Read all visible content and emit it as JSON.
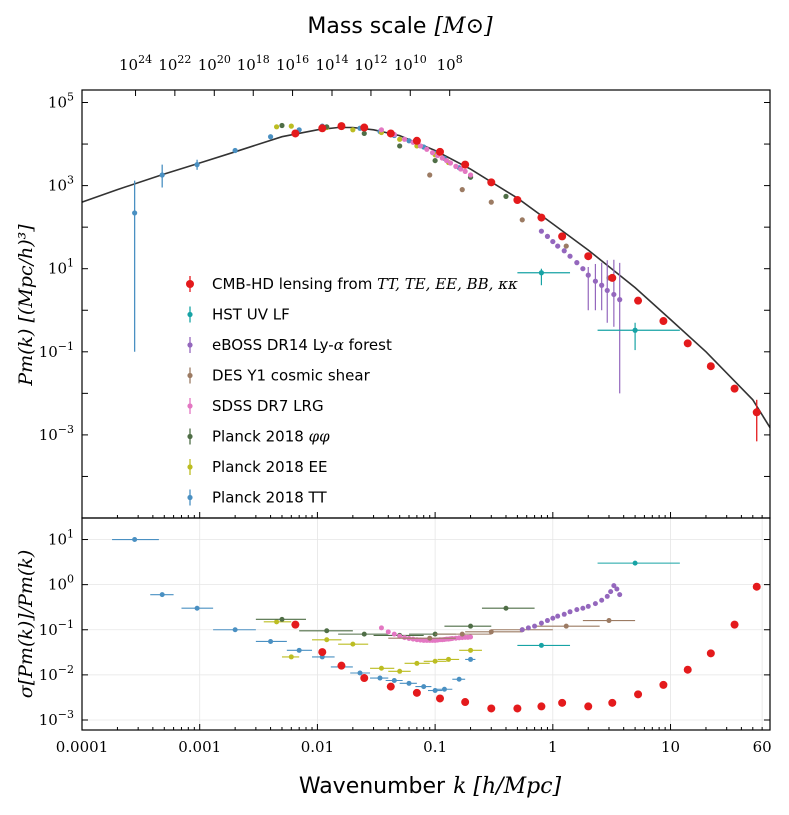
{
  "chart_data": [
    {
      "type": "scatter",
      "panel": "main",
      "title": "",
      "top_axis_label": "Mass scale [M⊙]",
      "top_ticks": [
        {
          "k": 0.000285,
          "base": "10",
          "exp": "24"
        },
        {
          "k": 0.000615,
          "base": "10",
          "exp": "22"
        },
        {
          "k": 0.00133,
          "base": "10",
          "exp": "20"
        },
        {
          "k": 0.00285,
          "base": "10",
          "exp": "18"
        },
        {
          "k": 0.00615,
          "base": "10",
          "exp": "16"
        },
        {
          "k": 0.0133,
          "base": "10",
          "exp": "14"
        },
        {
          "k": 0.0285,
          "base": "10",
          "exp": "12"
        },
        {
          "k": 0.0615,
          "base": "10",
          "exp": "10"
        },
        {
          "k": 0.133,
          "base": "10",
          "exp": "8"
        }
      ],
      "ylabel": "Pm(k) [(Mpc/h)³]",
      "yscale": "log",
      "ylim": [
        1e-05,
        200000.0
      ],
      "y_ticks": [
        {
          "v": 100000,
          "base": "10",
          "exp": "5"
        },
        {
          "v": 1000,
          "base": "10",
          "exp": "3"
        },
        {
          "v": 10,
          "base": "10",
          "exp": "1"
        },
        {
          "v": 0.1,
          "base": "10",
          "exp": "−1"
        },
        {
          "v": 0.001,
          "base": "10",
          "exp": "−3"
        }
      ],
      "legend_position": "lower-left",
      "series": [
        {
          "name": "CMB-HD lensing from TT,TE,EE,BB,κκ",
          "color": "#e41a1c",
          "k": [
            0.0065,
            0.011,
            0.016,
            0.025,
            0.042,
            0.07,
            0.11,
            0.18,
            0.3,
            0.5,
            0.8,
            1.2,
            2,
            3.2,
            5.3,
            8.7,
            14,
            22,
            35,
            54
          ],
          "P": [
            18000,
            24000,
            27000,
            25000,
            18000,
            12000,
            6500,
            3200,
            1200,
            450,
            170,
            60,
            20,
            6,
            1.7,
            0.55,
            0.16,
            0.045,
            0.013,
            0.0035
          ],
          "err_lo": [
            0,
            0,
            0,
            0,
            0,
            0,
            0,
            0,
            0,
            0,
            0,
            0,
            0,
            0,
            0,
            0,
            0,
            0,
            0,
            0.0028
          ],
          "err_hi": [
            0,
            0,
            0,
            0,
            0,
            0,
            0,
            0,
            0,
            0,
            0,
            0,
            0,
            0,
            0,
            0,
            0,
            0,
            0,
            0.0035
          ]
        },
        {
          "name": "HST UV LF",
          "color": "#17a3a5",
          "k": [
            0.8,
            5
          ],
          "P": [
            8,
            0.33
          ],
          "xerr": [
            [
              0.5,
              1.4
            ],
            [
              2.4,
              12
            ]
          ],
          "yerr": [
            [
              4,
              2
            ],
            [
              0.22,
              0.17
            ]
          ]
        },
        {
          "name": "eBOSS DR14 Ly-α forest",
          "color": "#9467bd",
          "k": [
            0.8,
            0.9,
            1.0,
            1.1,
            1.25,
            1.4,
            1.6,
            1.8,
            2.0,
            2.3,
            2.6,
            2.9,
            3.3,
            3.7
          ],
          "P": [
            80,
            60,
            45,
            35,
            27,
            20,
            14,
            10,
            7,
            5,
            4,
            3,
            2.4,
            1.8
          ],
          "yerr": [
            [
              0,
              0
            ],
            [
              0,
              0
            ],
            [
              0,
              0
            ],
            [
              0,
              0
            ],
            [
              0,
              0
            ],
            [
              0,
              0
            ],
            [
              0,
              0
            ],
            [
              0,
              0
            ],
            [
              6,
              4
            ],
            [
              4,
              8
            ],
            [
              3,
              10
            ],
            [
              2.5,
              13
            ],
            [
              2,
              14
            ],
            [
              1.79,
              12
            ]
          ]
        },
        {
          "name": "DES Y1 cosmic shear",
          "color": "#9c7b63",
          "k": [
            0.09,
            0.17,
            0.3,
            0.55,
            1.3,
            3
          ],
          "P": [
            1800,
            800,
            400,
            150,
            35,
            6
          ]
        },
        {
          "name": "SDSS DR7 LRG",
          "color": "#e377c2",
          "k": [
            0.035,
            0.045,
            0.055,
            0.065,
            0.075,
            0.085,
            0.095,
            0.105,
            0.115,
            0.125,
            0.135,
            0.15,
            0.165,
            0.18,
            0.2
          ],
          "P": [
            22000,
            17000,
            13000,
            11000,
            9000,
            7500,
            6200,
            5300,
            4600,
            4000,
            3500,
            2900,
            2500,
            2200,
            1800
          ]
        },
        {
          "name": "Planck 2018 φφ",
          "color": "#4f6e46",
          "k": [
            0.005,
            0.012,
            0.025,
            0.05,
            0.1,
            0.2,
            0.4
          ],
          "P": [
            28000,
            26000,
            18000,
            9000,
            4000,
            1600,
            550
          ]
        },
        {
          "name": "Planck 2018 EE",
          "color": "#bcbd22",
          "k": [
            0.0045,
            0.006,
            0.012,
            0.02,
            0.035,
            0.05,
            0.07,
            0.1,
            0.13
          ],
          "P": [
            26000,
            27000,
            25000,
            22000,
            19000,
            13000,
            9000,
            5500,
            3600
          ]
        },
        {
          "name": "Planck 2018 TT",
          "color": "#4a90c2",
          "k": [
            0.00028,
            0.00048,
            0.00095,
            0.002,
            0.004,
            0.007,
            0.011,
            0.016,
            0.023,
            0.034,
            0.045,
            0.06,
            0.08,
            0.1,
            0.12,
            0.16,
            0.2
          ],
          "P": [
            220,
            1800,
            3200,
            7000,
            15000,
            22000,
            27000,
            27000,
            24000,
            20000,
            16000,
            12000,
            8500,
            6000,
            4500,
            2700,
            1600
          ],
          "err_lo": [
            219.9,
            900,
            800,
            0,
            0,
            0,
            0,
            0,
            0,
            0,
            0,
            0,
            0,
            0,
            0,
            0,
            0
          ],
          "err_hi": [
            1100,
            1400,
            1000,
            0,
            0,
            0,
            0,
            0,
            0,
            0,
            0,
            0,
            0,
            0,
            0,
            0,
            0
          ]
        }
      ],
      "theory_curve": {
        "k": [
          0.0001,
          0.0002,
          0.0005,
          0.001,
          0.002,
          0.005,
          0.01,
          0.015,
          0.02,
          0.03,
          0.05,
          0.1,
          0.2,
          0.5,
          1,
          2,
          5,
          10,
          20,
          50,
          70
        ],
        "P": [
          400,
          800,
          1900,
          3500,
          6500,
          15000,
          22000,
          25000,
          25000,
          22000,
          16000,
          7000,
          2500,
          500,
          120,
          28,
          3.5,
          0.6,
          0.1,
          0.007,
          0.0015
        ]
      }
    },
    {
      "type": "scatter",
      "panel": "residual",
      "xlabel": "Wavenumber k [h/Mpc]",
      "ylabel": "σ[Pm(k)]/Pm(k)",
      "xscale": "log",
      "xlim": [
        0.0001,
        70
      ],
      "x_ticks": [
        {
          "v": 0.0001,
          "label": "0.0001"
        },
        {
          "v": 0.001,
          "label": "0.001"
        },
        {
          "v": 0.01,
          "label": "0.01"
        },
        {
          "v": 0.1,
          "label": "0.1"
        },
        {
          "v": 1,
          "label": "1"
        },
        {
          "v": 10,
          "label": "10"
        },
        {
          "v": 60,
          "label": "60"
        }
      ],
      "yscale": "log",
      "ylim": [
        0.0006,
        30
      ],
      "y_ticks": [
        {
          "v": 10,
          "base": "10",
          "exp": "1"
        },
        {
          "v": 1,
          "base": "10",
          "exp": "0"
        },
        {
          "v": 0.1,
          "base": "10",
          "exp": "−1"
        },
        {
          "v": 0.01,
          "base": "10",
          "exp": "−2"
        },
        {
          "v": 0.001,
          "base": "10",
          "exp": "−3"
        }
      ],
      "series": [
        {
          "name": "CMB-HD lensing",
          "color": "#e41a1c",
          "k": [
            0.0065,
            0.011,
            0.016,
            0.025,
            0.042,
            0.07,
            0.11,
            0.18,
            0.3,
            0.5,
            0.8,
            1.2,
            2,
            3.2,
            5.3,
            8.7,
            14,
            22,
            35,
            54
          ],
          "frac": [
            0.13,
            0.032,
            0.016,
            0.0085,
            0.0055,
            0.004,
            0.003,
            0.0025,
            0.0018,
            0.0018,
            0.002,
            0.0024,
            0.002,
            0.0024,
            0.0037,
            0.006,
            0.013,
            0.03,
            0.13,
            0.9
          ]
        },
        {
          "name": "HST UV LF",
          "color": "#17a3a5",
          "k": [
            0.8,
            5
          ],
          "frac": [
            0.045,
            3.0
          ],
          "xerr": [
            [
              0.5,
              1.4
            ],
            [
              2.4,
              12
            ]
          ]
        },
        {
          "name": "eBOSS DR14 Ly-α forest",
          "color": "#9467bd",
          "k": [
            0.55,
            0.62,
            0.7,
            0.8,
            0.9,
            1.0,
            1.1,
            1.25,
            1.4,
            1.6,
            1.8,
            2.0,
            2.3,
            2.6,
            2.9,
            3.1,
            3.3,
            3.5,
            3.7
          ],
          "frac": [
            0.1,
            0.11,
            0.12,
            0.14,
            0.16,
            0.18,
            0.2,
            0.22,
            0.25,
            0.28,
            0.3,
            0.33,
            0.38,
            0.45,
            0.55,
            0.7,
            0.95,
            0.8,
            0.6
          ]
        },
        {
          "name": "DES Y1 cosmic shear",
          "color": "#9c7b63",
          "k": [
            0.09,
            0.17,
            0.3,
            0.55,
            1.3,
            3
          ],
          "frac": [
            0.065,
            0.08,
            0.09,
            0.1,
            0.12,
            0.16
          ],
          "xerr": [
            [
              0.04,
              0.15
            ],
            [
              0.1,
              0.3
            ],
            [
              0.18,
              0.55
            ],
            [
              0.3,
              1
            ],
            [
              0.7,
              2.5
            ],
            [
              1.8,
              5
            ]
          ]
        },
        {
          "name": "SDSS DR7 LRG",
          "color": "#e377c2",
          "k": [
            0.035,
            0.04,
            0.045,
            0.05,
            0.055,
            0.06,
            0.065,
            0.07,
            0.075,
            0.08,
            0.085,
            0.09,
            0.095,
            0.1,
            0.105,
            0.11,
            0.115,
            0.12,
            0.125,
            0.13,
            0.135,
            0.14,
            0.15,
            0.16,
            0.17,
            0.18,
            0.19,
            0.2
          ],
          "frac": [
            0.11,
            0.09,
            0.08,
            0.072,
            0.067,
            0.064,
            0.062,
            0.06,
            0.059,
            0.058,
            0.058,
            0.058,
            0.058,
            0.058,
            0.059,
            0.06,
            0.06,
            0.061,
            0.062,
            0.062,
            0.063,
            0.064,
            0.065,
            0.066,
            0.067,
            0.068,
            0.068,
            0.069
          ]
        },
        {
          "name": "Planck 2018 φφ",
          "color": "#4f6e46",
          "k": [
            0.005,
            0.012,
            0.025,
            0.05,
            0.1,
            0.2,
            0.4
          ],
          "frac": [
            0.17,
            0.095,
            0.08,
            0.075,
            0.08,
            0.12,
            0.3
          ],
          "xerr": [
            [
              0.003,
              0.008
            ],
            [
              0.007,
              0.02
            ],
            [
              0.015,
              0.04
            ],
            [
              0.03,
              0.08
            ],
            [
              0.06,
              0.15
            ],
            [
              0.12,
              0.3
            ],
            [
              0.25,
              0.7
            ]
          ]
        },
        {
          "name": "Planck 2018 EE",
          "color": "#bcbd22",
          "k": [
            0.0045,
            0.006,
            0.012,
            0.02,
            0.035,
            0.05,
            0.07,
            0.1,
            0.13,
            0.2
          ],
          "frac": [
            0.15,
            0.025,
            0.06,
            0.048,
            0.014,
            0.012,
            0.018,
            0.02,
            0.022,
            0.035
          ],
          "xerr": [
            [
              0.0035,
              0.006
            ],
            [
              0.005,
              0.007
            ],
            [
              0.009,
              0.016
            ],
            [
              0.015,
              0.027
            ],
            [
              0.028,
              0.045
            ],
            [
              0.04,
              0.062
            ],
            [
              0.055,
              0.09
            ],
            [
              0.08,
              0.125
            ],
            [
              0.105,
              0.16
            ],
            [
              0.16,
              0.25
            ]
          ]
        },
        {
          "name": "Planck 2018 TT",
          "color": "#4a90c2",
          "k": [
            0.00028,
            0.00048,
            0.00095,
            0.002,
            0.004,
            0.007,
            0.011,
            0.016,
            0.023,
            0.034,
            0.045,
            0.06,
            0.08,
            0.1,
            0.12,
            0.16,
            0.2
          ],
          "frac": [
            10,
            0.6,
            0.3,
            0.1,
            0.055,
            0.035,
            0.025,
            0.015,
            0.011,
            0.0085,
            0.0075,
            0.0065,
            0.0055,
            0.0045,
            0.0048,
            0.008,
            0.022
          ],
          "xerr": [
            [
              0.00018,
              0.00045
            ],
            [
              0.00038,
              0.0006
            ],
            [
              0.0007,
              0.0013
            ],
            [
              0.0013,
              0.003
            ],
            [
              0.003,
              0.0055
            ],
            [
              0.0055,
              0.009
            ],
            [
              0.009,
              0.014
            ],
            [
              0.013,
              0.02
            ],
            [
              0.019,
              0.028
            ],
            [
              0.028,
              0.04
            ],
            [
              0.038,
              0.053
            ],
            [
              0.05,
              0.07
            ],
            [
              0.068,
              0.093
            ],
            [
              0.087,
              0.115
            ],
            [
              0.1,
              0.14
            ],
            [
              0.14,
              0.18
            ],
            [
              0.18,
              0.22
            ]
          ]
        }
      ]
    }
  ],
  "legend": [
    {
      "label": "CMB-HD lensing from ",
      "math": "TT, TE, EE, BB, κκ",
      "color": "#e41a1c",
      "big": true
    },
    {
      "label": "HST UV LF",
      "math": "",
      "color": "#17a3a5",
      "big": false
    },
    {
      "label": "eBOSS DR14 Ly-",
      "math": "α",
      "tail": " forest",
      "color": "#9467bd",
      "big": false
    },
    {
      "label": "DES Y1 cosmic shear",
      "math": "",
      "color": "#9c7b63",
      "big": false
    },
    {
      "label": "SDSS DR7 LRG",
      "math": "",
      "color": "#e377c2",
      "big": false
    },
    {
      "label": "Planck 2018 ",
      "math": "φφ",
      "color": "#4f6e46",
      "big": false
    },
    {
      "label": "Planck 2018 EE",
      "math": "",
      "color": "#bcbd22",
      "big": false
    },
    {
      "label": "Planck 2018 TT",
      "math": "",
      "color": "#4a90c2",
      "big": false
    }
  ],
  "labels": {
    "top_title_text": "Mass scale",
    "top_title_math": "[M⊙]",
    "xlabel_text": "Wavenumber",
    "xlabel_math": "k [h/Mpc]",
    "ylabel_main": "Pm(k) [(Mpc/h)³]",
    "ylabel_resid": "σ[Pm(k)]/Pm(k)"
  }
}
